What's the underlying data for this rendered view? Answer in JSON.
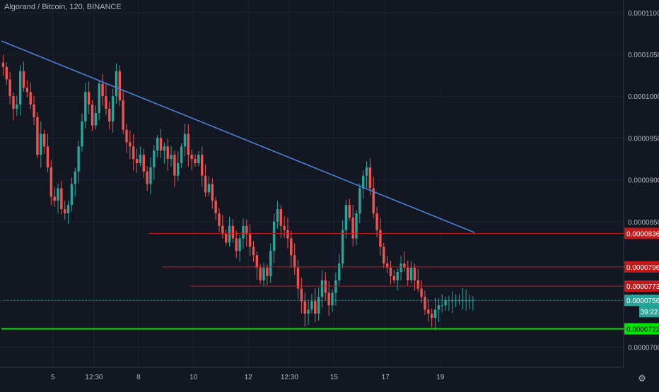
{
  "header": {
    "symbol_line": "Algorand / Bitcoin, 120, BINANCE"
  },
  "colors": {
    "background": "#131722",
    "grid": "#1e2230",
    "axis_text": "#b2b5be",
    "up": "#26a69a",
    "down": "#ef5350",
    "trendline": "#4a7fd4",
    "resistance": "#c21a1a",
    "support": "#00e600",
    "last_price_line": "#26a69a"
  },
  "chart_data": {
    "type": "candlestick",
    "title": "Algorand / Bitcoin, 120, BINANCE",
    "y_axis": {
      "ticks": [
        "0.0001100",
        "0.0001050",
        "0.0001000",
        "0.0000950",
        "0.0000900",
        "0.0000850",
        "0.0000700"
      ],
      "tick_values": [
        0.00011,
        0.000105,
        0.0001,
        9.5e-05,
        9e-05,
        8.5e-05,
        7e-05
      ],
      "range": [
        6.76e-05,
        0.0001115
      ]
    },
    "x_axis": {
      "labels": [
        "5",
        "12:30",
        "8",
        "10",
        "12",
        "12:30",
        "15",
        "17",
        "19"
      ],
      "label_index": [
        15,
        27,
        40,
        56,
        72,
        84,
        97,
        112,
        128
      ]
    },
    "candle_count": 138,
    "price_labels": [
      {
        "text": "0.0000836",
        "value": 8.36e-05,
        "role": "resistance"
      },
      {
        "text": "0.0000796",
        "value": 7.96e-05,
        "role": "resistance"
      },
      {
        "text": "0.0000773",
        "value": 7.73e-05,
        "role": "resistance"
      },
      {
        "text": "0.0000756",
        "value": 7.56e-05,
        "role": "last"
      },
      {
        "text": "39:22",
        "role": "countdown"
      },
      {
        "text": "0.0000722",
        "value": 7.22e-05,
        "role": "support"
      }
    ],
    "horizontal_levels": [
      {
        "value": 8.36e-05,
        "from_index": 43,
        "role": "resistance"
      },
      {
        "value": 7.96e-05,
        "from_index": 47,
        "role": "resistance"
      },
      {
        "value": 7.73e-05,
        "from_index": 55,
        "role": "resistance"
      },
      {
        "value": 7.22e-05,
        "from_index": 0,
        "role": "support"
      },
      {
        "value": 7.56e-05,
        "from_index": 0,
        "role": "last"
      }
    ],
    "trendline": {
      "from": [
        0,
        0.0001066
      ],
      "to": [
        138,
        8.37e-05
      ]
    },
    "closes": [
      0.0001035,
      0.000102,
      0.0001,
      9.85e-05,
      9.9e-05,
      0.000103,
      0.000101,
      0.0001005,
      9.9e-05,
      9.75e-05,
      9.3e-05,
      9.55e-05,
      9.4e-05,
      9.15e-05,
      8.8e-05,
      8.75e-05,
      8.9e-05,
      8.65e-05,
      8.6e-05,
      8.7e-05,
      8.95e-05,
      9.1e-05,
      9.4e-05,
      9.7e-05,
      0.0001005,
      9.9e-05,
      9.65e-05,
      9.8e-05,
      0.0001015,
      0.0001,
      9.85e-05,
      9.7e-05,
      0.0001,
      0.000103,
      9.95e-05,
      9.6e-05,
      9.45e-05,
      9.4e-05,
      9.25e-05,
      9.2e-05,
      9.3e-05,
      9.1e-05,
      8.95e-05,
      9.15e-05,
      9.35e-05,
      9.5e-05,
      9.35e-05,
      9.4e-05,
      9.25e-05,
      9.3e-05,
      9.05e-05,
      9.2e-05,
      9.4e-05,
      9.55e-05,
      9.3e-05,
      9.25e-05,
      9.2e-05,
      9.3e-05,
      9.05e-05,
      8.85e-05,
      8.95e-05,
      8.75e-05,
      8.6e-05,
      8.45e-05,
      8.35e-05,
      8.25e-05,
      8.45e-05,
      8.3e-05,
      8.15e-05,
      8.3e-05,
      8.45e-05,
      8.35e-05,
      8.2e-05,
      8.1e-05,
      7.95e-05,
      7.8e-05,
      7.95e-05,
      7.85e-05,
      8.15e-05,
      8.5e-05,
      8.65e-05,
      8.45e-05,
      8.4e-05,
      8.3e-05,
      8.1e-05,
      7.95e-05,
      7.7e-05,
      7.55e-05,
      7.4e-05,
      7.45e-05,
      7.55e-05,
      7.4e-05,
      7.6e-05,
      7.8e-05,
      7.65e-05,
      7.5e-05,
      7.65e-05,
      7.8e-05,
      8e-05,
      8.4e-05,
      8.7e-05,
      8.55e-05,
      8.3e-05,
      8.6e-05,
      8.9e-05,
      9.05e-05,
      9.15e-05,
      8.9e-05,
      8.6e-05,
      8.4e-05,
      8.2e-05,
      8e-05,
      7.95e-05,
      7.85e-05,
      7.8e-05,
      7.9e-05,
      8e-05,
      7.95e-05,
      7.8e-05,
      7.95e-05,
      7.8e-05,
      7.7e-05,
      7.6e-05,
      7.45e-05,
      7.4e-05,
      7.35e-05,
      7.45e-05,
      7.5e-05,
      7.5e-05,
      7.56e-05,
      7.56e-05,
      7.56e-05,
      7.56e-05,
      7.56e-05,
      7.56e-05,
      7.56e-05,
      7.56e-05,
      7.56e-05
    ]
  }
}
